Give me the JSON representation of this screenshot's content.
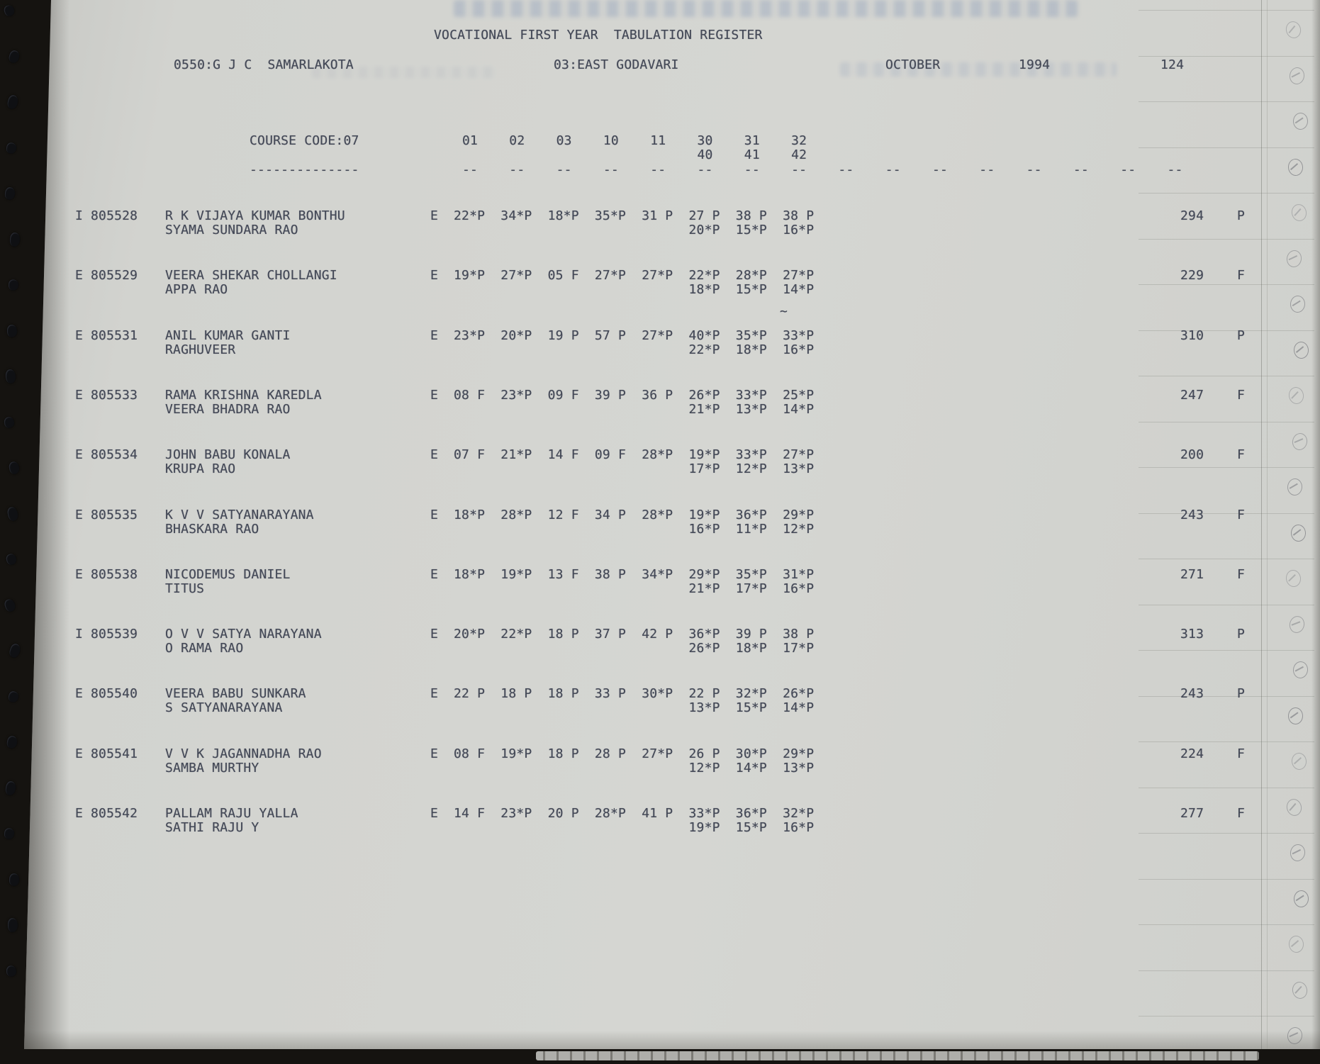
{
  "document": {
    "title": "VOCATIONAL FIRST YEAR  TABULATION REGISTER",
    "college": "0550:G J C  SAMARLAKOTA",
    "district": "03:EAST GODAVARI",
    "month": "OCTOBER",
    "year": "1994",
    "page_number": "124"
  },
  "table": {
    "course_code_label": "COURSE CODE:07",
    "course_underline": "--------------",
    "subject_columns_row1": [
      "01",
      "02",
      "03",
      "10",
      "11",
      "30",
      "31",
      "32"
    ],
    "subject_columns_row2": [
      "40",
      "41",
      "42"
    ],
    "column_dash": "--",
    "dash_column_count": 16
  },
  "records": [
    {
      "flag": "I",
      "roll": "805528",
      "name": "R K VIJAYA KUMAR BONTHU",
      "guardian": "SYAMA SUNDARA RAO",
      "medium": "E",
      "marks1": [
        "22*P",
        "34*P",
        "18*P",
        "35*P",
        "31 P",
        "27 P",
        "38 P",
        "38 P"
      ],
      "marks2": [
        "20*P",
        "15*P",
        "16*P"
      ],
      "total": "294",
      "result": "P"
    },
    {
      "flag": "E",
      "roll": "805529",
      "name": "VEERA SHEKAR CHOLLANGI",
      "guardian": "APPA RAO",
      "medium": "E",
      "marks1": [
        "19*P",
        "27*P",
        "05 F",
        "27*P",
        "27*P",
        "22*P",
        "28*P",
        "27*P"
      ],
      "marks2": [
        "18*P",
        "15*P",
        "14*P"
      ],
      "total": "229",
      "result": "F",
      "annotation": "~"
    },
    {
      "flag": "E",
      "roll": "805531",
      "name": "ANIL KUMAR GANTI",
      "guardian": "RAGHUVEER",
      "medium": "E",
      "marks1": [
        "23*P",
        "20*P",
        "19 P",
        "57 P",
        "27*P",
        "40*P",
        "35*P",
        "33*P"
      ],
      "marks2": [
        "22*P",
        "18*P",
        "16*P"
      ],
      "total": "310",
      "result": "P"
    },
    {
      "flag": "E",
      "roll": "805533",
      "name": "RAMA KRISHNA KAREDLA",
      "guardian": "VEERA BHADRA RAO",
      "medium": "E",
      "marks1": [
        "08 F",
        "23*P",
        "09 F",
        "39 P",
        "36 P",
        "26*P",
        "33*P",
        "25*P"
      ],
      "marks2": [
        "21*P",
        "13*P",
        "14*P"
      ],
      "total": "247",
      "result": "F"
    },
    {
      "flag": "E",
      "roll": "805534",
      "name": "JOHN BABU KONALA",
      "guardian": "KRUPA RAO",
      "medium": "E",
      "marks1": [
        "07 F",
        "21*P",
        "14 F",
        "09 F",
        "28*P",
        "19*P",
        "33*P",
        "27*P"
      ],
      "marks2": [
        "17*P",
        "12*P",
        "13*P"
      ],
      "total": "200",
      "result": "F"
    },
    {
      "flag": "E",
      "roll": "805535",
      "name": "K V V SATYANARAYANA",
      "guardian": "BHASKARA RAO",
      "medium": "E",
      "marks1": [
        "18*P",
        "28*P",
        "12 F",
        "34 P",
        "28*P",
        "19*P",
        "36*P",
        "29*P"
      ],
      "marks2": [
        "16*P",
        "11*P",
        "12*P"
      ],
      "total": "243",
      "result": "F"
    },
    {
      "flag": "E",
      "roll": "805538",
      "name": "NICODEMUS DANIEL",
      "guardian": "TITUS",
      "medium": "E",
      "marks1": [
        "18*P",
        "19*P",
        "13 F",
        "38 P",
        "34*P",
        "29*P",
        "35*P",
        "31*P"
      ],
      "marks2": [
        "21*P",
        "17*P",
        "16*P"
      ],
      "total": "271",
      "result": "F"
    },
    {
      "flag": "I",
      "roll": "805539",
      "name": "O V V SATYA NARAYANA",
      "guardian": "O RAMA RAO",
      "medium": "E",
      "marks1": [
        "20*P",
        "22*P",
        "18 P",
        "37 P",
        "42 P",
        "36*P",
        "39 P",
        "38 P"
      ],
      "marks2": [
        "26*P",
        "18*P",
        "17*P"
      ],
      "total": "313",
      "result": "P"
    },
    {
      "flag": "E",
      "roll": "805540",
      "name": "VEERA BABU SUNKARA",
      "guardian": "S SATYANARAYANA",
      "medium": "E",
      "marks1": [
        "22 P",
        "18 P",
        "18 P",
        "33 P",
        "30*P",
        "22 P",
        "32*P",
        "26*P"
      ],
      "marks2": [
        "13*P",
        "15*P",
        "14*P"
      ],
      "total": "243",
      "result": "P"
    },
    {
      "flag": "E",
      "roll": "805541",
      "name": "V V K JAGANNADHA RAO",
      "guardian": "SAMBA MURTHY",
      "medium": "E",
      "marks1": [
        "08 F",
        "19*P",
        "18 P",
        "28 P",
        "27*P",
        "26 P",
        "30*P",
        "29*P"
      ],
      "marks2": [
        "12*P",
        "14*P",
        "13*P"
      ],
      "total": "224",
      "result": "F"
    },
    {
      "flag": "E",
      "roll": "805542",
      "name": "PALLAM RAJU YALLA",
      "guardian": "SATHI RAJU Y",
      "medium": "E",
      "marks1": [
        "14 F",
        "23*P",
        "20 P",
        "28*P",
        "41 P",
        "33*P",
        "36*P",
        "32*P"
      ],
      "marks2": [
        "19*P",
        "15*P",
        "16*P"
      ],
      "total": "277",
      "result": "F"
    }
  ]
}
